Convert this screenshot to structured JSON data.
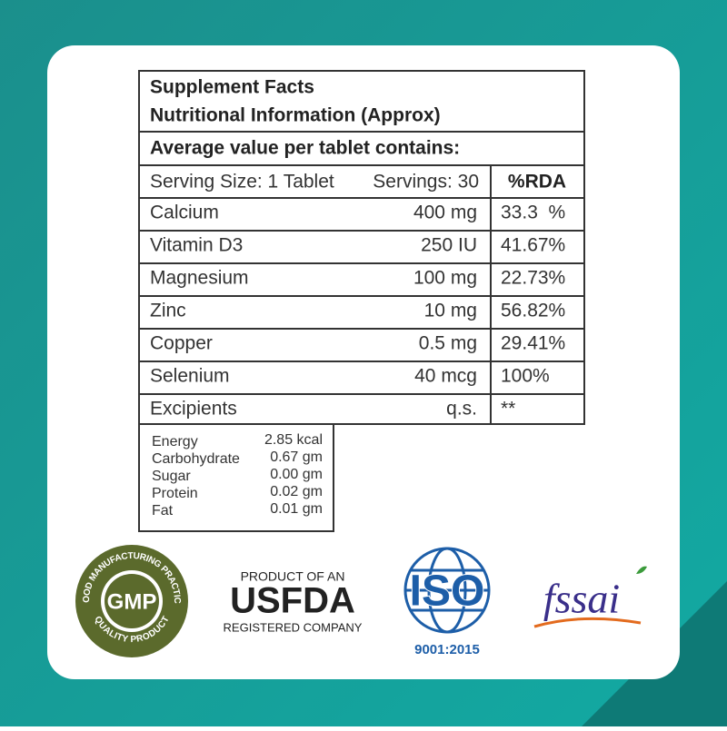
{
  "header": {
    "title": "Supplement Facts",
    "subtitle": "Nutritional Information (Approx)",
    "note": "Average value per tablet contains:"
  },
  "table": {
    "serving_size": "Serving Size: 1 Tablet",
    "servings": "Servings: 30",
    "rda_header": "%RDA",
    "rows": [
      [
        "Calcium",
        "400 mg",
        "33.3  %"
      ],
      [
        "Vitamin D3",
        "250 IU",
        "41.67%"
      ],
      [
        "Magnesium",
        "100 mg",
        "22.73%"
      ],
      [
        "Zinc",
        "10 mg",
        "56.82%"
      ],
      [
        "Copper",
        "0.5 mg",
        "29.41%"
      ],
      [
        "Selenium",
        "40 mcg",
        "100%"
      ],
      [
        "Excipients",
        "q.s.",
        "**"
      ]
    ]
  },
  "energy": {
    "rows": [
      [
        "Energy",
        "2.85 kcal"
      ],
      [
        "Carbohydrate",
        "0.67 gm"
      ],
      [
        "Sugar",
        "0.00 gm"
      ],
      [
        "Protein",
        "0.02 gm"
      ],
      [
        "Fat",
        "0.01 gm"
      ]
    ]
  },
  "badges": {
    "gmp": {
      "ring_top": "GOOD MANUFACTURING PRACTICE",
      "center": "GMP",
      "ring_bottom": "QUALITY PRODUCT"
    },
    "usfda": {
      "top": "PRODUCT OF AN",
      "main": "USFDA",
      "bottom": "REGISTERED COMPANY"
    },
    "iso": {
      "main": "ISO",
      "standard": "9001:2015"
    },
    "fssai": {
      "main": "fssai"
    }
  }
}
